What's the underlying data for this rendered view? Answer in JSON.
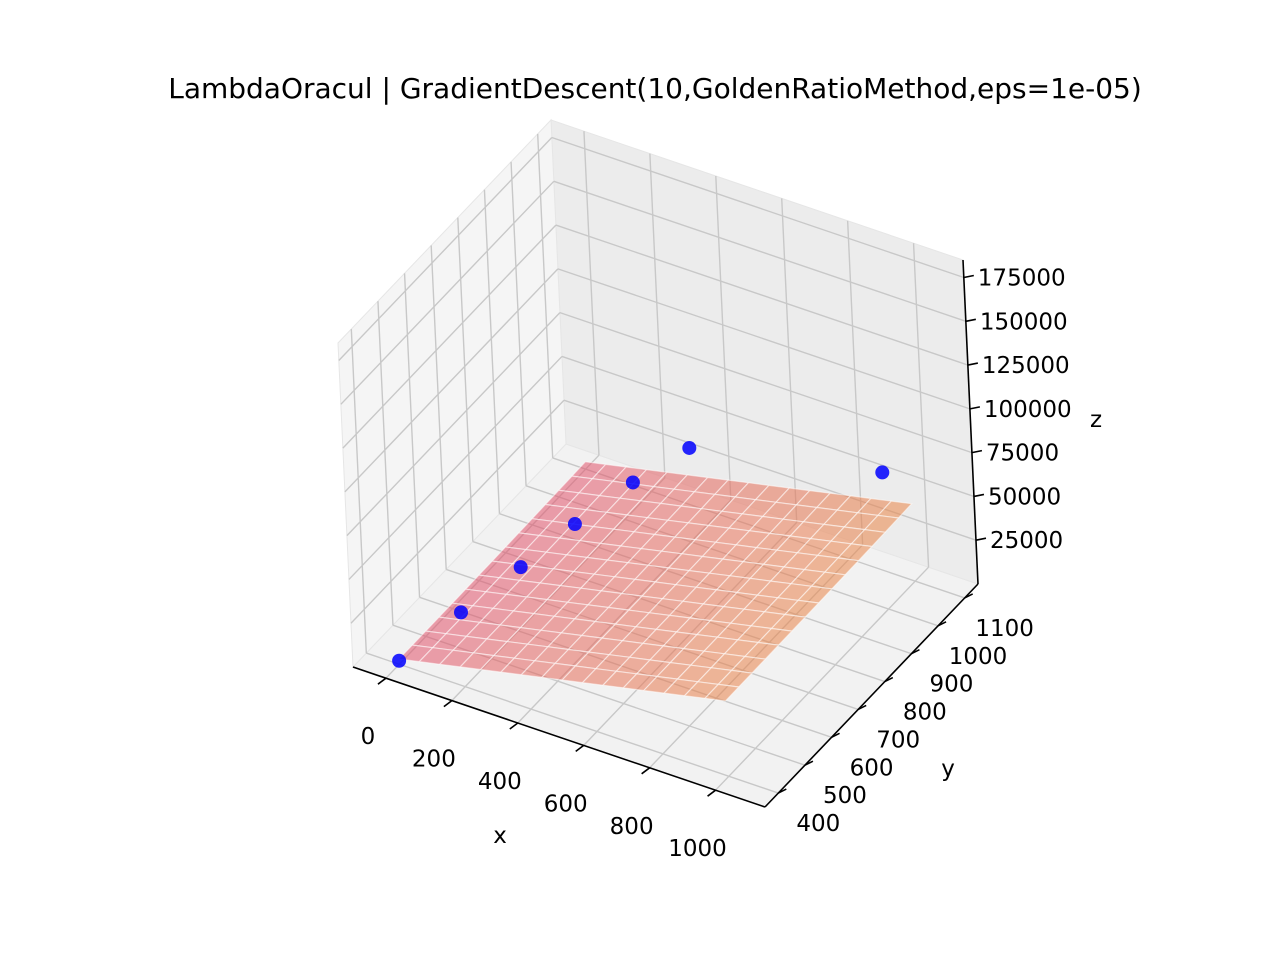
{
  "chart_data": {
    "type": "surface3d",
    "title": "LambdaOracul | GradientDescent(10,GoldenRatioMethod,eps=1e-05)",
    "xlabel": "x",
    "ylabel": "y",
    "zlabel": "z",
    "xlim": [
      -100,
      1150
    ],
    "ylim": [
      350,
      1150
    ],
    "zlim": [
      0,
      185000
    ],
    "xticks": [
      "0",
      "200",
      "400",
      "600",
      "800",
      "1000"
    ],
    "yticks": [
      "400",
      "500",
      "600",
      "700",
      "800",
      "900",
      "1000",
      "1100"
    ],
    "zticks": [
      "25000",
      "50000",
      "75000",
      "100000",
      "125000",
      "150000",
      "175000"
    ],
    "grid": true,
    "colormap": "spring (magenta → yellow), semi-transparent",
    "colors": {
      "surface_low": "#e0506e",
      "surface_high": "#ffee00",
      "path_points": "#0000ff",
      "pane": "#f2f2f2",
      "grid": "#cfcfcf"
    },
    "series": [
      {
        "values": [
          {
            "x": 0,
            "y": 400,
            "z": 2000
          },
          {
            "x": 60,
            "y": 560,
            "z": 8000
          },
          {
            "x": 130,
            "y": 700,
            "z": 16000
          },
          {
            "x": 200,
            "y": 820,
            "z": 26000
          },
          {
            "x": 290,
            "y": 930,
            "z": 38000
          },
          {
            "x": 400,
            "y": 1010,
            "z": 52000
          },
          {
            "x": 1000,
            "y": 1000,
            "z": 78000
          }
        ]
      }
    ]
  }
}
